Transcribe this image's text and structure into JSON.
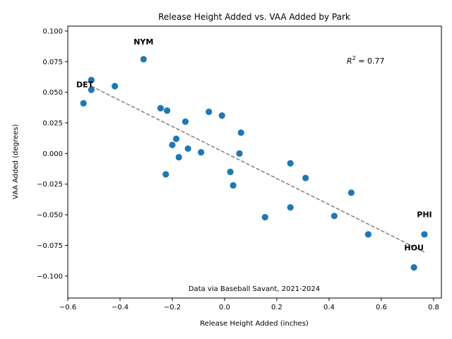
{
  "chart_data": {
    "type": "scatter",
    "title": "Release Height Added vs. VAA Added by Park",
    "xlabel": "Release Height Added (inches)",
    "ylabel": "VAA Added (degrees)",
    "xlim": [
      -0.6,
      0.83
    ],
    "ylim": [
      -0.118,
      0.104
    ],
    "xticks": [
      -0.6,
      -0.4,
      -0.2,
      0.0,
      0.2,
      0.4,
      0.6,
      0.8
    ],
    "xtick_labels": [
      "−0.6",
      "−0.4",
      "−0.2",
      "0.0",
      "0.2",
      "0.4",
      "0.6",
      "0.8"
    ],
    "yticks": [
      -0.1,
      -0.075,
      -0.05,
      -0.025,
      0.0,
      0.025,
      0.05,
      0.075,
      0.1
    ],
    "ytick_labels": [
      "−0.100",
      "−0.075",
      "−0.050",
      "−0.025",
      "0.000",
      "0.025",
      "0.050",
      "0.075",
      "0.100"
    ],
    "point_color": "#1f77b4",
    "trend_color": "#808080",
    "trend_line": {
      "x": [
        -0.51,
        0.77
      ],
      "y": [
        0.055,
        -0.081
      ]
    },
    "r2_prefix": "R",
    "r2_sup": "2",
    "r2_value": " = 0.77",
    "note": "Data via Baseball Savant, 2021-2024",
    "team_labels": [
      {
        "text": "NYM",
        "x": -0.31,
        "y": 0.089
      },
      {
        "text": "DET",
        "x": -0.535,
        "y": 0.054
      },
      {
        "text": "PHI",
        "x": 0.765,
        "y": -0.052
      },
      {
        "text": "HOU",
        "x": 0.725,
        "y": -0.079
      }
    ],
    "points": [
      {
        "x": -0.31,
        "y": 0.077
      },
      {
        "x": -0.51,
        "y": 0.06
      },
      {
        "x": -0.51,
        "y": 0.052
      },
      {
        "x": -0.42,
        "y": 0.055
      },
      {
        "x": -0.54,
        "y": 0.041
      },
      {
        "x": -0.245,
        "y": 0.037
      },
      {
        "x": -0.22,
        "y": 0.035
      },
      {
        "x": -0.15,
        "y": 0.026
      },
      {
        "x": -0.06,
        "y": 0.034
      },
      {
        "x": -0.01,
        "y": 0.031
      },
      {
        "x": 0.063,
        "y": 0.017
      },
      {
        "x": -0.185,
        "y": 0.012
      },
      {
        "x": -0.2,
        "y": 0.007
      },
      {
        "x": -0.14,
        "y": 0.004
      },
      {
        "x": -0.09,
        "y": 0.001
      },
      {
        "x": -0.175,
        "y": -0.003
      },
      {
        "x": 0.057,
        "y": 0.0
      },
      {
        "x": -0.225,
        "y": -0.017
      },
      {
        "x": 0.022,
        "y": -0.015
      },
      {
        "x": 0.033,
        "y": -0.026
      },
      {
        "x": 0.252,
        "y": -0.008
      },
      {
        "x": 0.31,
        "y": -0.02
      },
      {
        "x": 0.485,
        "y": -0.032
      },
      {
        "x": 0.252,
        "y": -0.044
      },
      {
        "x": 0.155,
        "y": -0.052
      },
      {
        "x": 0.42,
        "y": -0.051
      },
      {
        "x": 0.55,
        "y": -0.066
      },
      {
        "x": 0.765,
        "y": -0.066
      },
      {
        "x": 0.725,
        "y": -0.093
      }
    ]
  }
}
